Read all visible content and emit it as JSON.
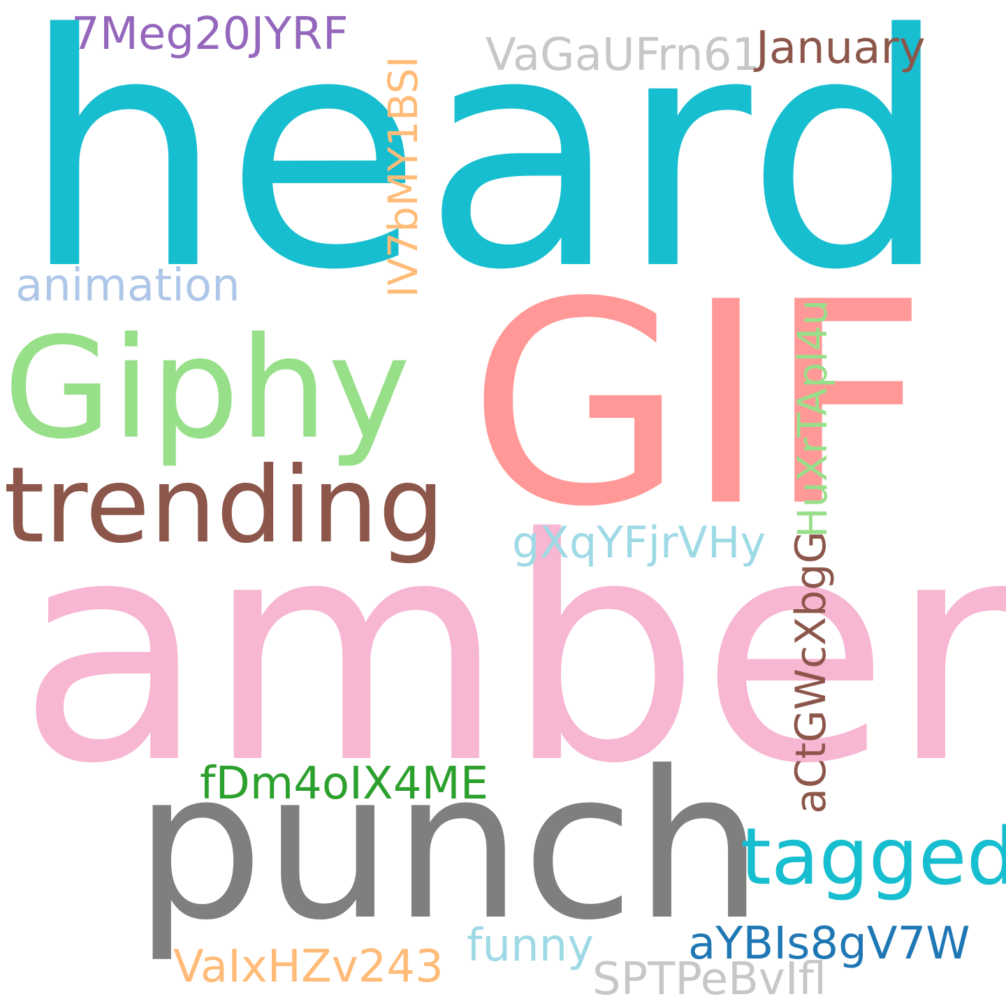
{
  "words": [
    {
      "text": "heard",
      "color": "#17becf"
    },
    {
      "text": "GIF",
      "color": "#ff9896"
    },
    {
      "text": "amber",
      "color": "#f7b6d2"
    },
    {
      "text": "punch",
      "color": "#7f7f7f"
    },
    {
      "text": "Giphy",
      "color": "#98df8a"
    },
    {
      "text": "trending",
      "color": "#8c564b"
    },
    {
      "text": "tagged",
      "color": "#17becf"
    },
    {
      "text": "animation",
      "color": "#aec7e8"
    },
    {
      "text": "7Meg20JYRF",
      "color": "#9467bd"
    },
    {
      "text": "VaGaUFrn61",
      "color": "#c7c7c7"
    },
    {
      "text": "January",
      "color": "#8c564b"
    },
    {
      "text": "IV7bMY1BSI",
      "color": "#ffbb78"
    },
    {
      "text": "HuXrTApl4u",
      "color": "#98df8a"
    },
    {
      "text": "gXqYFjrVHy",
      "color": "#9edae5"
    },
    {
      "text": "aCtGWcXbgG",
      "color": "#8c564b"
    },
    {
      "text": "fDm4oIX4ME",
      "color": "#2ca02c"
    },
    {
      "text": "aYBIs8gV7W",
      "color": "#1f77b4"
    },
    {
      "text": "funny",
      "color": "#9edae5"
    },
    {
      "text": "VaIxHZv243",
      "color": "#ffbb78"
    },
    {
      "text": "SPTPeBvIfl",
      "color": "#c7c7c7"
    }
  ]
}
